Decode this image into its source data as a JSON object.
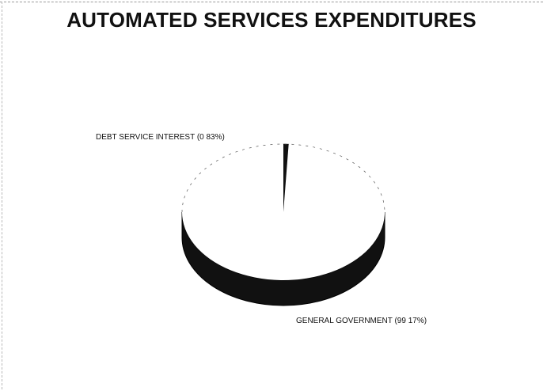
{
  "chart_data": {
    "type": "pie",
    "title": "AUTOMATED SERVICES EXPENDITURES",
    "style": "3d",
    "slices": [
      {
        "label": "DEBT SERVICE INTEREST (0 83%)",
        "value": 0.83,
        "color": "#111111"
      },
      {
        "label": "GENERAL GOVERNMENT (99 17%)",
        "value": 99.17,
        "color": "#ffffff"
      }
    ],
    "side_color": "#111111"
  }
}
